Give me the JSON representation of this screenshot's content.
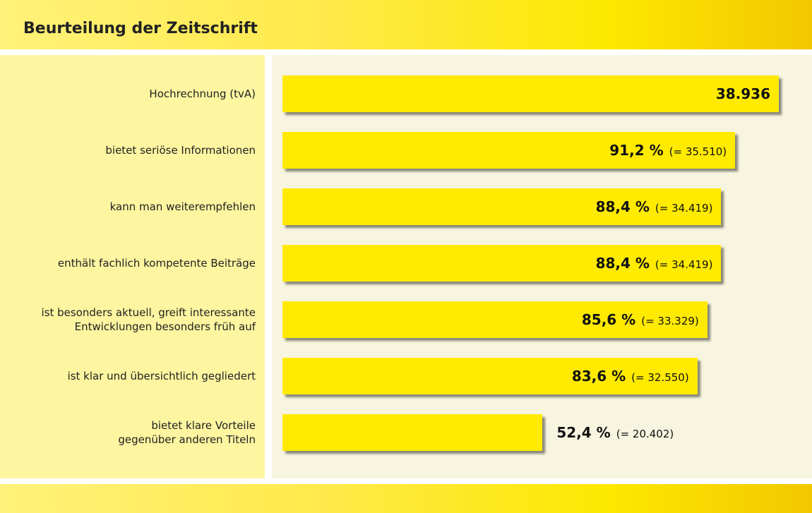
{
  "chart_data": {
    "type": "bar",
    "title": "Beurteilung der Zeitschrift",
    "categories": [
      "Hochrechnung (tvA)",
      "bietet seriöse Informationen",
      "kann man weiterempfehlen",
      "enthält fachlich kompetente Beiträge",
      "ist besonders aktuell, greift interessante\nEntwicklungen besonders früh auf",
      "ist klar und übersichtlich gegliedert",
      "bietet klare Vorteile\ngegenüber anderen Titeln"
    ],
    "values": [
      38936,
      35510,
      34419,
      34419,
      33329,
      32550,
      20402
    ],
    "value_labels": [
      "38.936",
      "(= 35.510)",
      "(= 34.419)",
      "(= 34.419)",
      "(= 33.329)",
      "(= 32.550)",
      "(= 20.402)"
    ],
    "shares": [
      null,
      91.2,
      88.4,
      88.4,
      85.6,
      83.6,
      52.4
    ],
    "share_labels": [
      null,
      "91,2 %",
      "88,4 %",
      "88,4 %",
      "85,6 %",
      "83,6 %",
      "52,4 %"
    ],
    "color": "#ffea00"
  }
}
